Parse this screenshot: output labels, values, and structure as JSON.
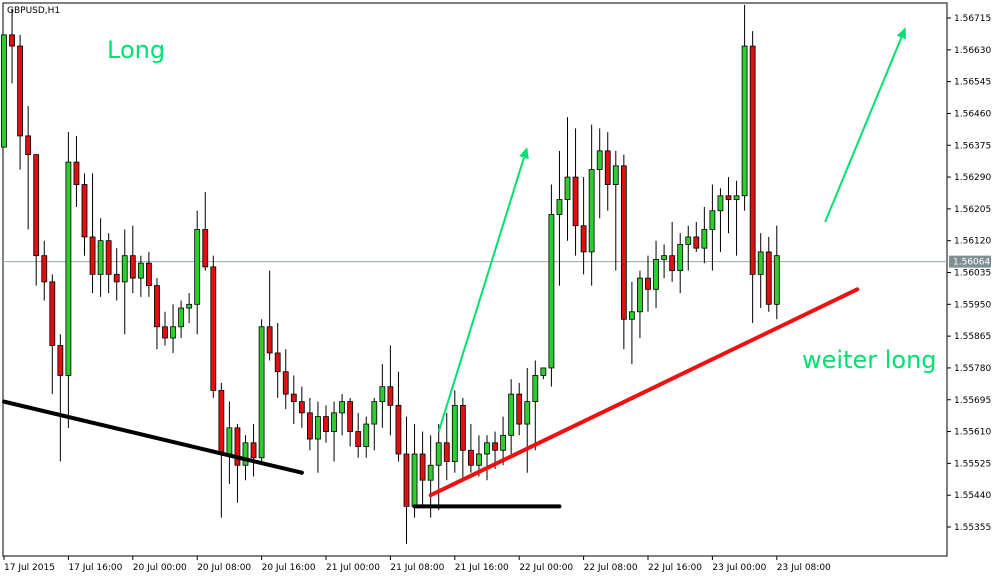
{
  "chart_data": {
    "type": "candlestick",
    "symbol": "GBPUSD,H1",
    "colors": {
      "bull": "#2ecc2e",
      "bear": "#dd1111",
      "wick": "#000000",
      "grid": "#9aa8aa",
      "accent": "#00e070",
      "trend_up": "#ee1111",
      "trend_down": "#000000",
      "price_label_bg": "#7f8f92"
    },
    "y_axis": {
      "range": [
        1.553,
        1.5676
      ],
      "ticks": [
        "1.56715",
        "1.56630",
        "1.56545",
        "1.56460",
        "1.56375",
        "1.56290",
        "1.56205",
        "1.56120",
        "1.56035",
        "1.55950",
        "1.55865",
        "1.55780",
        "1.55695",
        "1.55610",
        "1.55525",
        "1.55440",
        "1.55355"
      ]
    },
    "x_axis": {
      "ticks": [
        {
          "label": "17 Jul 2015",
          "index": 0
        },
        {
          "label": "17 Jul 16:00",
          "index": 8
        },
        {
          "label": "20 Jul 00:00",
          "index": 16
        },
        {
          "label": "20 Jul 08:00",
          "index": 24
        },
        {
          "label": "20 Jul 16:00",
          "index": 32
        },
        {
          "label": "21 Jul 00:00",
          "index": 40
        },
        {
          "label": "21 Jul 08:00",
          "index": 48
        },
        {
          "label": "21 Jul 16:00",
          "index": 56
        },
        {
          "label": "22 Jul 00:00",
          "index": 64
        },
        {
          "label": "22 Jul 08:00",
          "index": 72
        },
        {
          "label": "22 Jul 16:00",
          "index": 80
        },
        {
          "label": "23 Jul 00:00",
          "index": 88
        },
        {
          "label": "23 Jul 08:00",
          "index": 96
        }
      ]
    },
    "current_price": "1.56064",
    "annotations": [
      {
        "text": "Long",
        "color": "#00e070"
      },
      {
        "text": "weiter long",
        "color": "#00e070"
      }
    ],
    "trendlines": [
      {
        "name": "downtrend-support",
        "color": "#000000",
        "from": {
          "index": 0,
          "price": 1.5569
        },
        "to": {
          "index": 37,
          "price": 1.555
        }
      },
      {
        "name": "horizontal-support",
        "color": "#000000",
        "from": {
          "index": 51,
          "price": 1.5541
        },
        "to": {
          "index": 69,
          "price": 1.5541
        }
      },
      {
        "name": "uptrend-support",
        "color": "#ee1111",
        "from": {
          "index": 53,
          "price": 1.5544
        },
        "to": {
          "index": 106,
          "price": 1.5599
        }
      }
    ],
    "arrows": [
      {
        "name": "long-arrow-1",
        "color": "#00e070",
        "from": {
          "index": 54,
          "price": 1.5561
        },
        "to": {
          "index": 65,
          "price": 1.5637
        }
      },
      {
        "name": "long-arrow-2",
        "color": "#00e070",
        "from": {
          "index": 102,
          "price": 1.5617
        },
        "to": {
          "index": 112,
          "price": 1.5669
        }
      }
    ],
    "candles": [
      [
        1.5637,
        1.5667,
        1.5637,
        1.5667
      ],
      [
        1.5667,
        1.5674,
        1.5654,
        1.5664
      ],
      [
        1.5664,
        1.5667,
        1.5631,
        1.564
      ],
      [
        1.564,
        1.5648,
        1.5615,
        1.5635
      ],
      [
        1.5635,
        1.5635,
        1.56,
        1.5608
      ],
      [
        1.5608,
        1.5612,
        1.5596,
        1.5601
      ],
      [
        1.5601,
        1.5603,
        1.5571,
        1.5584
      ],
      [
        1.5584,
        1.5587,
        1.5553,
        1.5576
      ],
      [
        1.5576,
        1.5641,
        1.5562,
        1.5633
      ],
      [
        1.5633,
        1.564,
        1.5621,
        1.5627
      ],
      [
        1.5627,
        1.563,
        1.5608,
        1.5613
      ],
      [
        1.5613,
        1.563,
        1.5598,
        1.5603
      ],
      [
        1.5603,
        1.5618,
        1.5597,
        1.5612
      ],
      [
        1.5612,
        1.5614,
        1.5598,
        1.5603
      ],
      [
        1.5603,
        1.561,
        1.5596,
        1.5601
      ],
      [
        1.5601,
        1.5615,
        1.5587,
        1.5608
      ],
      [
        1.5608,
        1.5616,
        1.5598,
        1.5602
      ],
      [
        1.5602,
        1.5608,
        1.5597,
        1.5606
      ],
      [
        1.5606,
        1.5609,
        1.5597,
        1.56
      ],
      [
        1.56,
        1.5602,
        1.5583,
        1.5589
      ],
      [
        1.5589,
        1.5593,
        1.5584,
        1.5586
      ],
      [
        1.5586,
        1.5595,
        1.5582,
        1.5589
      ],
      [
        1.5589,
        1.5596,
        1.5586,
        1.5594
      ],
      [
        1.5594,
        1.5598,
        1.559,
        1.5595
      ],
      [
        1.5595,
        1.562,
        1.5587,
        1.5615
      ],
      [
        1.5615,
        1.5625,
        1.5604,
        1.5605
      ],
      [
        1.5605,
        1.5608,
        1.557,
        1.5572
      ],
      [
        1.5572,
        1.5574,
        1.5538,
        1.5555
      ],
      [
        1.5555,
        1.5569,
        1.5547,
        1.5562
      ],
      [
        1.5562,
        1.5563,
        1.5542,
        1.5552
      ],
      [
        1.5552,
        1.556,
        1.5548,
        1.5558
      ],
      [
        1.5558,
        1.5563,
        1.5549,
        1.5554
      ],
      [
        1.5554,
        1.5591,
        1.5553,
        1.5589
      ],
      [
        1.5589,
        1.5604,
        1.558,
        1.5582
      ],
      [
        1.5582,
        1.559,
        1.557,
        1.5577
      ],
      [
        1.5577,
        1.5583,
        1.5567,
        1.5571
      ],
      [
        1.5571,
        1.5576,
        1.5563,
        1.5569
      ],
      [
        1.5569,
        1.5573,
        1.5562,
        1.5566
      ],
      [
        1.5566,
        1.557,
        1.5556,
        1.5559
      ],
      [
        1.5559,
        1.5569,
        1.555,
        1.5565
      ],
      [
        1.5565,
        1.5568,
        1.5558,
        1.5561
      ],
      [
        1.5561,
        1.5569,
        1.5553,
        1.5566
      ],
      [
        1.5566,
        1.5571,
        1.556,
        1.5569
      ],
      [
        1.5569,
        1.557,
        1.5557,
        1.5561
      ],
      [
        1.5561,
        1.5566,
        1.5554,
        1.5557
      ],
      [
        1.5557,
        1.5565,
        1.5554,
        1.5563
      ],
      [
        1.5563,
        1.557,
        1.5556,
        1.5569
      ],
      [
        1.5569,
        1.5579,
        1.5562,
        1.5573
      ],
      [
        1.5573,
        1.5584,
        1.556,
        1.5568
      ],
      [
        1.5568,
        1.5577,
        1.5553,
        1.5555
      ],
      [
        1.5555,
        1.5565,
        1.5531,
        1.5541
      ],
      [
        1.5541,
        1.5563,
        1.5538,
        1.5555
      ],
      [
        1.5555,
        1.5561,
        1.5541,
        1.5548
      ],
      [
        1.5548,
        1.556,
        1.5538,
        1.5552
      ],
      [
        1.5552,
        1.5563,
        1.554,
        1.5558
      ],
      [
        1.5558,
        1.5566,
        1.5548,
        1.5553
      ],
      [
        1.5553,
        1.5572,
        1.555,
        1.5568
      ],
      [
        1.5568,
        1.557,
        1.5548,
        1.5556
      ],
      [
        1.5556,
        1.5563,
        1.555,
        1.5552
      ],
      [
        1.5552,
        1.556,
        1.5549,
        1.5555
      ],
      [
        1.5555,
        1.556,
        1.5548,
        1.5558
      ],
      [
        1.5558,
        1.5561,
        1.5551,
        1.5556
      ],
      [
        1.5556,
        1.5565,
        1.5552,
        1.556
      ],
      [
        1.556,
        1.5575,
        1.5555,
        1.5571
      ],
      [
        1.5571,
        1.5574,
        1.556,
        1.5563
      ],
      [
        1.5563,
        1.5578,
        1.555,
        1.5569
      ],
      [
        1.5569,
        1.558,
        1.5556,
        1.5576
      ],
      [
        1.5576,
        1.5578,
        1.5575,
        1.5578
      ],
      [
        1.5578,
        1.5627,
        1.5573,
        1.5619
      ],
      [
        1.5619,
        1.5636,
        1.56,
        1.5623
      ],
      [
        1.5623,
        1.5645,
        1.5612,
        1.5629
      ],
      [
        1.5629,
        1.5642,
        1.5608,
        1.5616
      ],
      [
        1.5616,
        1.5629,
        1.5603,
        1.5609
      ],
      [
        1.5609,
        1.5643,
        1.56,
        1.5631
      ],
      [
        1.5631,
        1.5642,
        1.5618,
        1.5636
      ],
      [
        1.5636,
        1.5641,
        1.562,
        1.5627
      ],
      [
        1.5627,
        1.5636,
        1.5604,
        1.5632
      ],
      [
        1.5632,
        1.5635,
        1.5583,
        1.5591
      ],
      [
        1.5591,
        1.5601,
        1.5579,
        1.5593
      ],
      [
        1.5593,
        1.5604,
        1.5586,
        1.5602
      ],
      [
        1.5602,
        1.5608,
        1.5593,
        1.5599
      ],
      [
        1.5599,
        1.5612,
        1.5594,
        1.5607
      ],
      [
        1.5607,
        1.5611,
        1.5602,
        1.5608
      ],
      [
        1.5608,
        1.5617,
        1.5601,
        1.5604
      ],
      [
        1.5604,
        1.5614,
        1.5598,
        1.5611
      ],
      [
        1.5611,
        1.5616,
        1.5604,
        1.5613
      ],
      [
        1.5613,
        1.5617,
        1.5609,
        1.561
      ],
      [
        1.561,
        1.5621,
        1.5606,
        1.5615
      ],
      [
        1.5615,
        1.5627,
        1.5604,
        1.562
      ],
      [
        1.562,
        1.5626,
        1.5609,
        1.5624
      ],
      [
        1.5624,
        1.5629,
        1.5614,
        1.5623
      ],
      [
        1.5623,
        1.5628,
        1.5608,
        1.5624
      ],
      [
        1.5624,
        1.5675,
        1.562,
        1.5664
      ],
      [
        1.5664,
        1.5668,
        1.559,
        1.5603
      ],
      [
        1.5603,
        1.5614,
        1.5594,
        1.5609
      ],
      [
        1.5609,
        1.5613,
        1.5593,
        1.5595
      ],
      [
        1.5595,
        1.5616,
        1.5591,
        1.5608
      ]
    ]
  }
}
